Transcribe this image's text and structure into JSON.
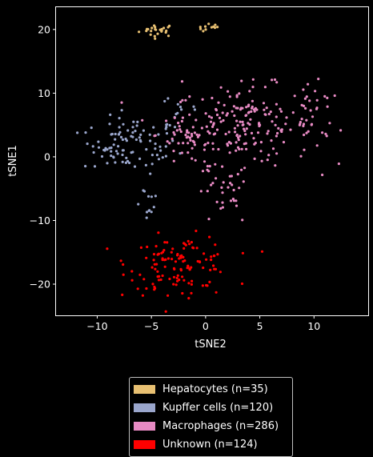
{
  "chart_data": {
    "type": "scatter",
    "xlabel": "tSNE2",
    "ylabel": "tSNE1",
    "xlim": [
      -13.8,
      15.0
    ],
    "ylim": [
      -24.9,
      23.5
    ],
    "xticks": [
      -10,
      -5,
      0,
      5,
      10
    ],
    "yticks": [
      -20,
      -10,
      0,
      10,
      20
    ],
    "legend_position": "below",
    "series": [
      {
        "name": "Hepatocytes (n=35)",
        "color": "#e8c072",
        "clusters": [
          {
            "center": [
              -4.4,
              19.9
            ],
            "spread": [
              1.0,
              0.6
            ],
            "n": 24
          },
          {
            "center": [
              0.5,
              20.2
            ],
            "spread": [
              0.7,
              0.4
            ],
            "n": 11
          }
        ]
      },
      {
        "name": "Kupffer cells (n=120)",
        "color": "#9aa6cc",
        "clusters": [
          {
            "center": [
              -6.5,
              1.8
            ],
            "spread": [
              2.3,
              2.6
            ],
            "n": 75
          },
          {
            "center": [
              -9.5,
              1.5
            ],
            "spread": [
              1.2,
              2.5
            ],
            "n": 20
          },
          {
            "center": [
              -5.5,
              -7.0
            ],
            "spread": [
              0.8,
              1.8
            ],
            "n": 12
          },
          {
            "center": [
              -2.5,
              7.0
            ],
            "spread": [
              1.5,
              2.5
            ],
            "n": 13
          }
        ]
      },
      {
        "name": "Macrophages (n=286)",
        "color": "#e78ac3",
        "clusters": [
          {
            "center": [
              3.5,
              5.0
            ],
            "spread": [
              3.8,
              3.6
            ],
            "n": 190
          },
          {
            "center": [
              -1.5,
              3.5
            ],
            "spread": [
              1.8,
              3.0
            ],
            "n": 40
          },
          {
            "center": [
              1.5,
              -6.0
            ],
            "spread": [
              1.5,
              3.0
            ],
            "n": 30
          },
          {
            "center": [
              10.0,
              6.0
            ],
            "spread": [
              1.5,
              3.0
            ],
            "n": 26
          }
        ]
      },
      {
        "name": "Unknown (n=124)",
        "color": "#ff0000",
        "clusters": [
          {
            "center": [
              -2.3,
              -16.5
            ],
            "spread": [
              2.8,
              2.4
            ],
            "n": 110
          },
          {
            "center": [
              -3.0,
              -20.5
            ],
            "spread": [
              2.8,
              0.9
            ],
            "n": 14
          }
        ]
      }
    ]
  }
}
